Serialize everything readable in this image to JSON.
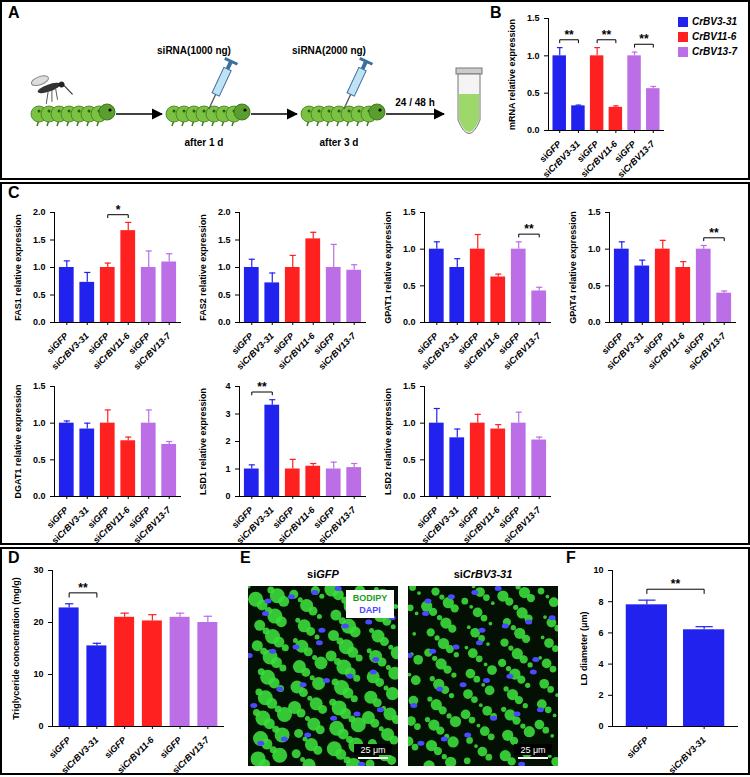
{
  "chart_data": [
    {
      "panel": "B",
      "type": "bar",
      "y_label": "mRNA relative expression",
      "categories": [
        "siGFP",
        "siCrBV3-31",
        "siGFP",
        "siCrBV11-6",
        "siGFP",
        "siCrBV13-7"
      ],
      "values": [
        1.0,
        0.33,
        1.0,
        0.31,
        1.0,
        0.56
      ],
      "errors": [
        0.11,
        0.01,
        0.11,
        0.02,
        0.05,
        0.03
      ],
      "colors": [
        "#2222ee",
        "#2222ee",
        "#ff2020",
        "#ff2020",
        "#bb6ee6",
        "#bb6ee6"
      ],
      "ylim": [
        0,
        1.5
      ],
      "yticks": [
        {
          "value": 0,
          "label": "0.0"
        },
        {
          "value": 0.5,
          "label": "0.5"
        },
        {
          "value": 1,
          "label": "1.0"
        },
        {
          "value": 1.5,
          "label": "1.5"
        }
      ],
      "significance": [
        {
          "from": 0,
          "to": 1,
          "label": "**"
        },
        {
          "from": 2,
          "to": 3,
          "label": "**"
        },
        {
          "from": 4,
          "to": 5,
          "label": "**"
        }
      ],
      "legend": "top-right",
      "legend_entries": [
        {
          "name": "CrBV3-31",
          "color": "#2222ee"
        },
        {
          "name": "CrBV11-6",
          "color": "#ff2020"
        },
        {
          "name": "CrBV13-7",
          "color": "#bb6ee6"
        }
      ]
    },
    {
      "panel": "C",
      "type": "bar",
      "y_label": "FAS1 relative expression",
      "categories": [
        "siGFP",
        "siCrBV3-31",
        "siGFP",
        "siCrBV11-6",
        "siGFP",
        "siCrBV13-7"
      ],
      "values": [
        1.0,
        0.73,
        1.0,
        1.67,
        1.0,
        1.1
      ],
      "errors": [
        0.12,
        0.18,
        0.08,
        0.15,
        0.3,
        0.15
      ],
      "colors": [
        "#2222ee",
        "#2222ee",
        "#ff2020",
        "#ff2020",
        "#bb6ee6",
        "#bb6ee6"
      ],
      "ylim": [
        0,
        2
      ],
      "yticks": [
        {
          "value": 0,
          "label": "0.0"
        },
        {
          "value": 0.5,
          "label": "0.5"
        },
        {
          "value": 1,
          "label": "1.0"
        },
        {
          "value": 1.5,
          "label": "1.5"
        },
        {
          "value": 2,
          "label": "2.0"
        }
      ],
      "significance": [
        {
          "from": 2,
          "to": 3,
          "label": "*"
        }
      ]
    },
    {
      "panel": "C",
      "type": "bar",
      "y_label": "FAS2 relative expression",
      "categories": [
        "siGFP",
        "siCrBV3-31",
        "siGFP",
        "siCrBV11-6",
        "siGFP",
        "siCrBV13-7"
      ],
      "values": [
        1.0,
        0.72,
        1.0,
        1.52,
        1.0,
        0.95
      ],
      "errors": [
        0.15,
        0.18,
        0.22,
        0.12,
        0.42,
        0.1
      ],
      "colors": [
        "#2222ee",
        "#2222ee",
        "#ff2020",
        "#ff2020",
        "#bb6ee6",
        "#bb6ee6"
      ],
      "ylim": [
        0,
        2
      ],
      "yticks": [
        {
          "value": 0,
          "label": "0.0"
        },
        {
          "value": 0.5,
          "label": "0.5"
        },
        {
          "value": 1,
          "label": "1.0"
        },
        {
          "value": 1.5,
          "label": "1.5"
        },
        {
          "value": 2,
          "label": "2.0"
        }
      ],
      "significance": []
    },
    {
      "panel": "C",
      "type": "bar",
      "y_label": "GPAT1 relative expression",
      "categories": [
        "siGFP",
        "siCrBV3-31",
        "siGFP",
        "siCrBV11-6",
        "siGFP",
        "siCrBV13-7"
      ],
      "values": [
        1.0,
        0.75,
        1.0,
        0.62,
        1.0,
        0.43
      ],
      "errors": [
        0.1,
        0.12,
        0.2,
        0.04,
        0.1,
        0.05
      ],
      "colors": [
        "#2222ee",
        "#2222ee",
        "#ff2020",
        "#ff2020",
        "#bb6ee6",
        "#bb6ee6"
      ],
      "ylim": [
        0,
        1.5
      ],
      "yticks": [
        {
          "value": 0,
          "label": "0.0"
        },
        {
          "value": 0.5,
          "label": "0.5"
        },
        {
          "value": 1,
          "label": "1.0"
        },
        {
          "value": 1.5,
          "label": "1.5"
        }
      ],
      "significance": [
        {
          "from": 4,
          "to": 5,
          "label": "**"
        }
      ]
    },
    {
      "panel": "C",
      "type": "bar",
      "y_label": "GPAT4 relative expression",
      "categories": [
        "siGFP",
        "siCrBV3-31",
        "siGFP",
        "siCrBV11-6",
        "siGFP",
        "siCrBV13-7"
      ],
      "values": [
        1.0,
        0.77,
        1.0,
        0.75,
        1.0,
        0.4
      ],
      "errors": [
        0.1,
        0.08,
        0.12,
        0.08,
        0.05,
        0.03
      ],
      "colors": [
        "#2222ee",
        "#2222ee",
        "#ff2020",
        "#ff2020",
        "#bb6ee6",
        "#bb6ee6"
      ],
      "ylim": [
        0,
        1.5
      ],
      "yticks": [
        {
          "value": 0,
          "label": "0.0"
        },
        {
          "value": 0.5,
          "label": "0.5"
        },
        {
          "value": 1,
          "label": "1.0"
        },
        {
          "value": 1.5,
          "label": "1.5"
        }
      ],
      "significance": [
        {
          "from": 4,
          "to": 5,
          "label": "**"
        }
      ]
    },
    {
      "panel": "C",
      "type": "bar",
      "y_label": "DGAT1 relative expression",
      "categories": [
        "siGFP",
        "siCrBV3-31",
        "siGFP",
        "siCrBV11-6",
        "siGFP",
        "siCrBV13-7"
      ],
      "values": [
        1.0,
        0.92,
        1.0,
        0.76,
        1.0,
        0.71
      ],
      "errors": [
        0.03,
        0.08,
        0.18,
        0.05,
        0.18,
        0.04
      ],
      "colors": [
        "#2222ee",
        "#2222ee",
        "#ff2020",
        "#ff2020",
        "#bb6ee6",
        "#bb6ee6"
      ],
      "ylim": [
        0,
        1.5
      ],
      "yticks": [
        {
          "value": 0,
          "label": "0.0"
        },
        {
          "value": 0.5,
          "label": "0.5"
        },
        {
          "value": 1,
          "label": "1.0"
        },
        {
          "value": 1.5,
          "label": "1.5"
        }
      ],
      "significance": []
    },
    {
      "panel": "C",
      "type": "bar",
      "y_label": "LSD1 relative expression",
      "categories": [
        "siGFP",
        "siCrBV3-31",
        "siGFP",
        "siCrBV11-6",
        "siGFP",
        "siCrBV13-7"
      ],
      "values": [
        1.0,
        3.32,
        1.0,
        1.1,
        1.0,
        1.05
      ],
      "errors": [
        0.15,
        0.2,
        0.35,
        0.1,
        0.25,
        0.15
      ],
      "colors": [
        "#2222ee",
        "#2222ee",
        "#ff2020",
        "#ff2020",
        "#bb6ee6",
        "#bb6ee6"
      ],
      "ylim": [
        0,
        4
      ],
      "yticks": [
        0,
        1,
        2,
        3,
        4
      ],
      "significance": [
        {
          "from": 0,
          "to": 1,
          "label": "**"
        }
      ]
    },
    {
      "panel": "C",
      "type": "bar",
      "y_label": "LSD2 relative expression",
      "categories": [
        "siGFP",
        "siCrBV3-31",
        "siGFP",
        "siCrBV11-6",
        "siGFP",
        "siCrBV13-7"
      ],
      "values": [
        1.0,
        0.8,
        1.0,
        0.92,
        1.0,
        0.77
      ],
      "errors": [
        0.2,
        0.12,
        0.12,
        0.06,
        0.15,
        0.04
      ],
      "colors": [
        "#2222ee",
        "#2222ee",
        "#ff2020",
        "#ff2020",
        "#bb6ee6",
        "#bb6ee6"
      ],
      "ylim": [
        0,
        1.5
      ],
      "yticks": [
        {
          "value": 0,
          "label": "0.0"
        },
        {
          "value": 0.5,
          "label": "0.5"
        },
        {
          "value": 1,
          "label": "1.0"
        },
        {
          "value": 1.5,
          "label": "1.5"
        }
      ],
      "significance": []
    },
    {
      "panel": "D",
      "type": "bar",
      "y_label": "Triglyceride concentration (mg/g)",
      "categories": [
        "siGFP",
        "siCrBV3-31",
        "siGFP",
        "siCrBV11-6",
        "siGFP",
        "siCrBV13-7"
      ],
      "values": [
        22.8,
        15.5,
        21.0,
        20.3,
        21.0,
        20.0
      ],
      "errors": [
        0.8,
        0.5,
        0.8,
        1.2,
        0.8,
        1.2
      ],
      "colors": [
        "#2222ee",
        "#2222ee",
        "#ff2020",
        "#ff2020",
        "#bb6ee6",
        "#bb6ee6"
      ],
      "ylim": [
        0,
        30
      ],
      "yticks": [
        0,
        10,
        20,
        30
      ],
      "significance": [
        {
          "from": 0,
          "to": 1,
          "label": "**"
        }
      ]
    },
    {
      "panel": "F",
      "type": "bar",
      "y_label": "LD diameter (μm)",
      "categories": [
        "siGFP",
        "siCrBV3-31"
      ],
      "values": [
        7.8,
        6.2
      ],
      "errors": [
        0.3,
        0.2
      ],
      "colors": [
        "#2222ee",
        "#2222ee"
      ],
      "ylim": [
        0,
        10
      ],
      "yticks": [
        0,
        2,
        4,
        6,
        8,
        10
      ],
      "significance": [
        {
          "from": 0,
          "to": 1,
          "label": "**"
        }
      ]
    }
  ],
  "diagram": {
    "panel": "A",
    "steps": [
      {
        "label": "siRNA(1000 ng)",
        "time": "after 1 d"
      },
      {
        "label": "siRNA(2000 ng)",
        "time": "after 3 d"
      }
    ],
    "final_time": "24 / 48 h"
  },
  "image": {
    "panel": "E",
    "images": [
      {
        "label": "siGFP",
        "scale_bar": "25 μm"
      },
      {
        "label": "siCrBV3-31",
        "scale_bar": "25 μm"
      }
    ],
    "channels": [
      {
        "name": "BODIPY",
        "color": "#3cdc3c"
      },
      {
        "name": "DAPI",
        "color": "#4a4aff"
      }
    ]
  }
}
